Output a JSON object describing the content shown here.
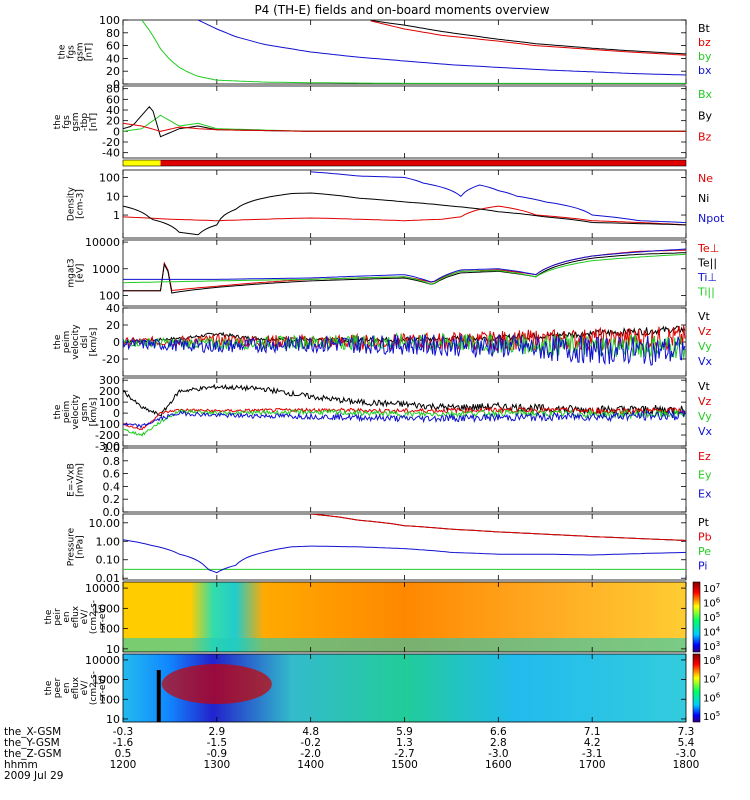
{
  "title": "P4 (TH-E) fields and on-board moments overview",
  "colors": {
    "black": "#000000",
    "red": "#e00000",
    "green": "#22cc22",
    "blue": "#1010d0",
    "yellow": "#ffff00"
  },
  "chart_data": [
    {
      "type": "line",
      "ylabel": [
        "the",
        "fgs",
        "gsm",
        "[nT]"
      ],
      "ylim": [
        0,
        100
      ],
      "ticks": [
        "0",
        "20",
        "40",
        "60",
        "80",
        "100"
      ],
      "series": [
        {
          "name": "Bt",
          "color": "#000000",
          "x": [
            1212,
            1230,
            1250,
            1280,
            1300,
            1340,
            1400,
            1430,
            1460,
            1500,
            1540,
            1600,
            1640,
            1700,
            1740,
            1800
          ],
          "y": [
            null,
            null,
            null,
            null,
            null,
            null,
            null,
            null,
            100,
            92,
            82,
            70,
            63,
            56,
            52,
            47
          ]
        },
        {
          "name": "bz",
          "color": "#e00000",
          "x": [
            1212,
            1300,
            1400,
            1430,
            1460,
            1500,
            1540,
            1600,
            1640,
            1700,
            1740,
            1800
          ],
          "y": [
            null,
            null,
            null,
            null,
            100,
            86,
            76,
            67,
            60,
            54,
            50,
            45
          ]
        },
        {
          "name": "by",
          "color": "#22cc22",
          "x": [
            1220,
            1230,
            1240,
            1250,
            1260,
            1270,
            1280,
            1300,
            1350,
            1400,
            1500,
            1600,
            1800
          ],
          "y": [
            100,
            80,
            55,
            38,
            26,
            18,
            12,
            6,
            3,
            2,
            1,
            1,
            1
          ]
        },
        {
          "name": "bx",
          "color": "#1010d0",
          "x": [
            1280,
            1300,
            1320,
            1350,
            1400,
            1450,
            1500,
            1550,
            1600,
            1650,
            1700,
            1750,
            1800
          ],
          "y": [
            100,
            86,
            74,
            62,
            50,
            42,
            36,
            30,
            26,
            22,
            19,
            16,
            14
          ]
        }
      ]
    },
    {
      "type": "line",
      "ylabel": [
        "the",
        "fgs",
        "gsm",
        "-tbp",
        "[nT]"
      ],
      "ylim": [
        -50,
        85
      ],
      "ticks": [
        "-40",
        "-20",
        "0",
        "20",
        "40",
        "60",
        "80"
      ],
      "series": [
        {
          "name": "Bx",
          "color": "#22cc22",
          "x": [
            1200,
            1220,
            1240,
            1260,
            1280,
            1300,
            1400,
            1500,
            1600,
            1700,
            1800
          ],
          "y": [
            0,
            5,
            30,
            10,
            15,
            5,
            0,
            0,
            0,
            0,
            0
          ]
        },
        {
          "name": "By",
          "color": "#000000",
          "x": [
            1200,
            1210,
            1220,
            1230,
            1240,
            1260,
            1280,
            1300,
            1400,
            1500,
            1600,
            1700,
            1800
          ],
          "y": [
            5,
            10,
            30,
            50,
            -10,
            5,
            10,
            3,
            0,
            0,
            0,
            0,
            0
          ]
        },
        {
          "name": "Bz",
          "color": "#e00000",
          "x": [
            1200,
            1220,
            1240,
            1260,
            1280,
            1300,
            1400,
            1500,
            1600,
            1700,
            1800
          ],
          "y": [
            15,
            10,
            0,
            8,
            5,
            3,
            0,
            0,
            0,
            0,
            0
          ]
        }
      ]
    },
    {
      "type": "line",
      "ylabel": [
        "Density",
        "[cm-3]"
      ],
      "yscale": "log",
      "ylim": [
        0.06,
        250
      ],
      "ticks": [
        "100",
        "10",
        "1"
      ],
      "series": [
        {
          "name": "Ne",
          "color": "#e00000",
          "x": [
            1200,
            1250,
            1300,
            1350,
            1400,
            1450,
            1500,
            1540,
            1560,
            1580,
            1600,
            1640,
            1700,
            1800
          ],
          "y": [
            0.8,
            0.6,
            0.5,
            0.6,
            0.7,
            0.6,
            0.5,
            0.6,
            0.8,
            2,
            3,
            1,
            0.5,
            0.3
          ]
        },
        {
          "name": "Ni",
          "color": "#000000",
          "x": [
            1200,
            1230,
            1260,
            1280,
            1300,
            1320,
            1350,
            1380,
            1400,
            1450,
            1500,
            1550,
            1600,
            1650,
            1700,
            1800
          ],
          "y": [
            3,
            0.6,
            0.12,
            0.09,
            0.3,
            2,
            8,
            14,
            15,
            8,
            5,
            3,
            1.5,
            0.8,
            0.4,
            0.3
          ]
        },
        {
          "name": "Npot",
          "color": "#1010d0",
          "x": [
            1400,
            1450,
            1500,
            1520,
            1540,
            1560,
            1580,
            1600,
            1620,
            1650,
            1700,
            1750,
            1800
          ],
          "y": [
            200,
            120,
            100,
            50,
            30,
            10,
            40,
            20,
            10,
            5,
            1,
            0.5,
            0.4
          ]
        }
      ]
    },
    {
      "type": "line",
      "ylabel": [
        "mgat3",
        "[eV]"
      ],
      "yscale": "log",
      "ylim": [
        40,
        12000
      ],
      "ticks": [
        "10000",
        "1000",
        "100"
      ],
      "series": [
        {
          "name": "Te⊥",
          "color": "#e00000",
          "x": [
            1200,
            1240,
            1245,
            1250,
            1300,
            1400,
            1500,
            1530,
            1560,
            1600,
            1640,
            1700,
            1750,
            1800
          ],
          "y": [
            150,
            150,
            2000,
            150,
            220,
            400,
            500,
            300,
            800,
            900,
            600,
            3000,
            4500,
            5000
          ]
        },
        {
          "name": "Te||",
          "color": "#000000",
          "x": [
            1200,
            1240,
            1245,
            1250,
            1300,
            1400,
            1500,
            1530,
            1560,
            1600,
            1640,
            1700,
            1750,
            1800
          ],
          "y": [
            150,
            150,
            1800,
            120,
            200,
            350,
            450,
            250,
            700,
            800,
            500,
            2500,
            3500,
            4000
          ]
        },
        {
          "name": "Ti⊥",
          "color": "#1010d0",
          "x": [
            1200,
            1300,
            1400,
            1500,
            1530,
            1560,
            1600,
            1640,
            1700,
            1800
          ],
          "y": [
            400,
            400,
            450,
            600,
            300,
            900,
            1000,
            600,
            3000,
            5500
          ]
        },
        {
          "name": "Ti||",
          "color": "#22cc22",
          "x": [
            1200,
            1300,
            1400,
            1500,
            1530,
            1560,
            1600,
            1640,
            1700,
            1800
          ],
          "y": [
            300,
            350,
            400,
            500,
            250,
            800,
            850,
            500,
            2000,
            3500
          ]
        }
      ]
    },
    {
      "type": "line",
      "ylabel": [
        "the",
        "peim",
        "velocity",
        "dsl",
        "[km/s]"
      ],
      "ylim": [
        -40,
        40
      ],
      "ticks": [
        "-20",
        "0",
        "20",
        "40"
      ],
      "noise": [
        3,
        10,
        10,
        12
      ],
      "series": [
        {
          "name": "Vt",
          "color": "#000000",
          "x": [
            1200,
            1270,
            1300,
            1330,
            1400,
            1500,
            1600,
            1700,
            1800
          ],
          "y": [
            0,
            5,
            10,
            5,
            2,
            3,
            5,
            10,
            15
          ]
        },
        {
          "name": "Vz",
          "color": "#e00000",
          "x": [
            1200,
            1300,
            1400,
            1500,
            1600,
            1700,
            1800
          ],
          "y": [
            0,
            2,
            0,
            0,
            2,
            3,
            5
          ]
        },
        {
          "name": "Vy",
          "color": "#22cc22",
          "x": [
            1200,
            1300,
            1400,
            1500,
            1600,
            1700,
            1800
          ],
          "y": [
            0,
            -2,
            0,
            0,
            -2,
            -5,
            -5
          ]
        },
        {
          "name": "Vx",
          "color": "#1010d0",
          "x": [
            1200,
            1300,
            1400,
            1500,
            1600,
            1700,
            1800
          ],
          "y": [
            -2,
            -5,
            -2,
            -3,
            -5,
            -10,
            -10
          ]
        }
      ]
    },
    {
      "type": "line",
      "ylabel": [
        "the",
        "peim",
        "velocity",
        "gsm",
        "[km/s]"
      ],
      "ylim": [
        -300,
        320
      ],
      "ticks": [
        "-300",
        "-200",
        "-100",
        "0",
        "100",
        "200",
        "300"
      ],
      "noise": [
        30,
        20,
        25,
        30
      ],
      "series": [
        {
          "name": "Vt",
          "color": "#000000",
          "x": [
            1200,
            1220,
            1240,
            1260,
            1300,
            1350,
            1400,
            1450,
            1500,
            1550,
            1600,
            1650,
            1700,
            1800
          ],
          "y": [
            200,
            50,
            -20,
            200,
            240,
            220,
            150,
            100,
            80,
            50,
            60,
            40,
            30,
            30
          ]
        },
        {
          "name": "Vz",
          "color": "#e00000",
          "x": [
            1200,
            1220,
            1240,
            1260,
            1300,
            1400,
            1500,
            1600,
            1700,
            1800
          ],
          "y": [
            -100,
            -150,
            0,
            30,
            20,
            30,
            20,
            30,
            20,
            20
          ]
        },
        {
          "name": "Vy",
          "color": "#22cc22",
          "x": [
            1200,
            1220,
            1240,
            1260,
            1300,
            1400,
            1500,
            1600,
            1700,
            1800
          ],
          "y": [
            -150,
            -200,
            -80,
            20,
            0,
            10,
            -10,
            0,
            -10,
            -10
          ]
        },
        {
          "name": "Vx",
          "color": "#1010d0",
          "x": [
            1200,
            1220,
            1240,
            1260,
            1300,
            1400,
            1500,
            1600,
            1700,
            1800
          ],
          "y": [
            -100,
            -120,
            -50,
            0,
            -20,
            -30,
            -50,
            -40,
            -30,
            -20
          ]
        }
      ]
    },
    {
      "type": "line",
      "ylabel": [
        "E=-VxB",
        "[mV/m]"
      ],
      "ylim": [
        0,
        1
      ],
      "ticks": [
        "0.0",
        "0.2",
        "0.4",
        "0.6",
        "0.8",
        "1.0"
      ],
      "series": [
        {
          "name": "Ez",
          "color": "#e00000",
          "x": [],
          "y": []
        },
        {
          "name": "Ey",
          "color": "#22cc22",
          "x": [],
          "y": []
        },
        {
          "name": "Ex",
          "color": "#1010d0",
          "x": [],
          "y": []
        }
      ]
    },
    {
      "type": "line",
      "ylabel": [
        "Pressure",
        "[nPa]"
      ],
      "yscale": "log",
      "ylim": [
        0.008,
        30
      ],
      "ticks": [
        "10.00",
        "1.00",
        "0.10",
        "0.01"
      ],
      "series": [
        {
          "name": "Pt",
          "color": "#000000",
          "x": [
            1400,
            1450,
            1500,
            1550,
            1600,
            1650,
            1700,
            1750,
            1800
          ],
          "y": [
            30,
            14,
            7,
            4.5,
            3.2,
            2.4,
            1.8,
            1.4,
            1.1
          ]
        },
        {
          "name": "Pb",
          "color": "#e00000",
          "x": [
            1400,
            1450,
            1500,
            1550,
            1600,
            1650,
            1700,
            1750,
            1800
          ],
          "y": [
            30,
            14,
            7,
            4.5,
            3.2,
            2.4,
            1.8,
            1.4,
            1.1
          ]
        },
        {
          "name": "Pe",
          "color": "#22cc22",
          "x": [
            1200,
            1300,
            1400,
            1500,
            1600,
            1700,
            1800
          ],
          "y": [
            0.03,
            0.03,
            0.03,
            0.03,
            0.03,
            0.03,
            0.03
          ]
        },
        {
          "name": "Pi",
          "color": "#1010d0",
          "x": [
            1200,
            1230,
            1260,
            1290,
            1300,
            1320,
            1350,
            1380,
            1400,
            1450,
            1500,
            1550,
            1600,
            1650,
            1700,
            1800
          ],
          "y": [
            1.2,
            0.6,
            0.2,
            0.03,
            0.02,
            0.05,
            0.25,
            0.5,
            0.55,
            0.5,
            0.4,
            0.25,
            0.2,
            0.2,
            0.18,
            0.25
          ]
        }
      ]
    },
    {
      "type": "heatmap",
      "ylabel": [
        "the",
        "peir",
        "en",
        "eflux",
        "eV/",
        "(cm2-s-",
        "sr-eV)"
      ],
      "yscale": "log",
      "ylim": [
        7,
        20000
      ],
      "ticks": [
        "10000",
        "1000",
        "100",
        "10"
      ],
      "colorbar": {
        "ticks": [
          "10",
          "10",
          "10",
          "10",
          "10"
        ],
        "exponents": [
          "7",
          "6",
          "5",
          "4",
          "3"
        ]
      }
    },
    {
      "type": "heatmap",
      "ylabel": [
        "the",
        "peer",
        "en",
        "eflux",
        "eV/",
        "(cm2-s-",
        "sr-eV)"
      ],
      "yscale": "log",
      "ylim": [
        7,
        20000
      ],
      "ticks": [
        "10000",
        "1000",
        "100",
        "10"
      ],
      "colorbar": {
        "ticks": [
          "10",
          "10",
          "10",
          "10"
        ],
        "exponents": [
          "8",
          "7",
          "6",
          "5"
        ]
      }
    }
  ],
  "status_bar": {
    "label_left": "yellow",
    "label_right": "red"
  },
  "footer": {
    "rows": [
      {
        "label": "the_X-GSM",
        "values": [
          "-0.3",
          "2.9",
          "4.8",
          "5.9",
          "6.6",
          "7.1",
          "7.3"
        ]
      },
      {
        "label": "the_Y-GSM",
        "values": [
          "-1.6",
          "-1.5",
          "-0.2",
          "1.3",
          "2.8",
          "4.2",
          "5.4"
        ]
      },
      {
        "label": "the_Z-GSM",
        "values": [
          "0.5",
          "-0.9",
          "-2.0",
          "-2.7",
          "-3.0",
          "-3.1",
          "-3.0"
        ]
      },
      {
        "label": "hhmm",
        "values": [
          "1200",
          "1300",
          "1400",
          "1500",
          "1600",
          "1700",
          "1800"
        ]
      }
    ],
    "date": "2009 Jul 29"
  }
}
